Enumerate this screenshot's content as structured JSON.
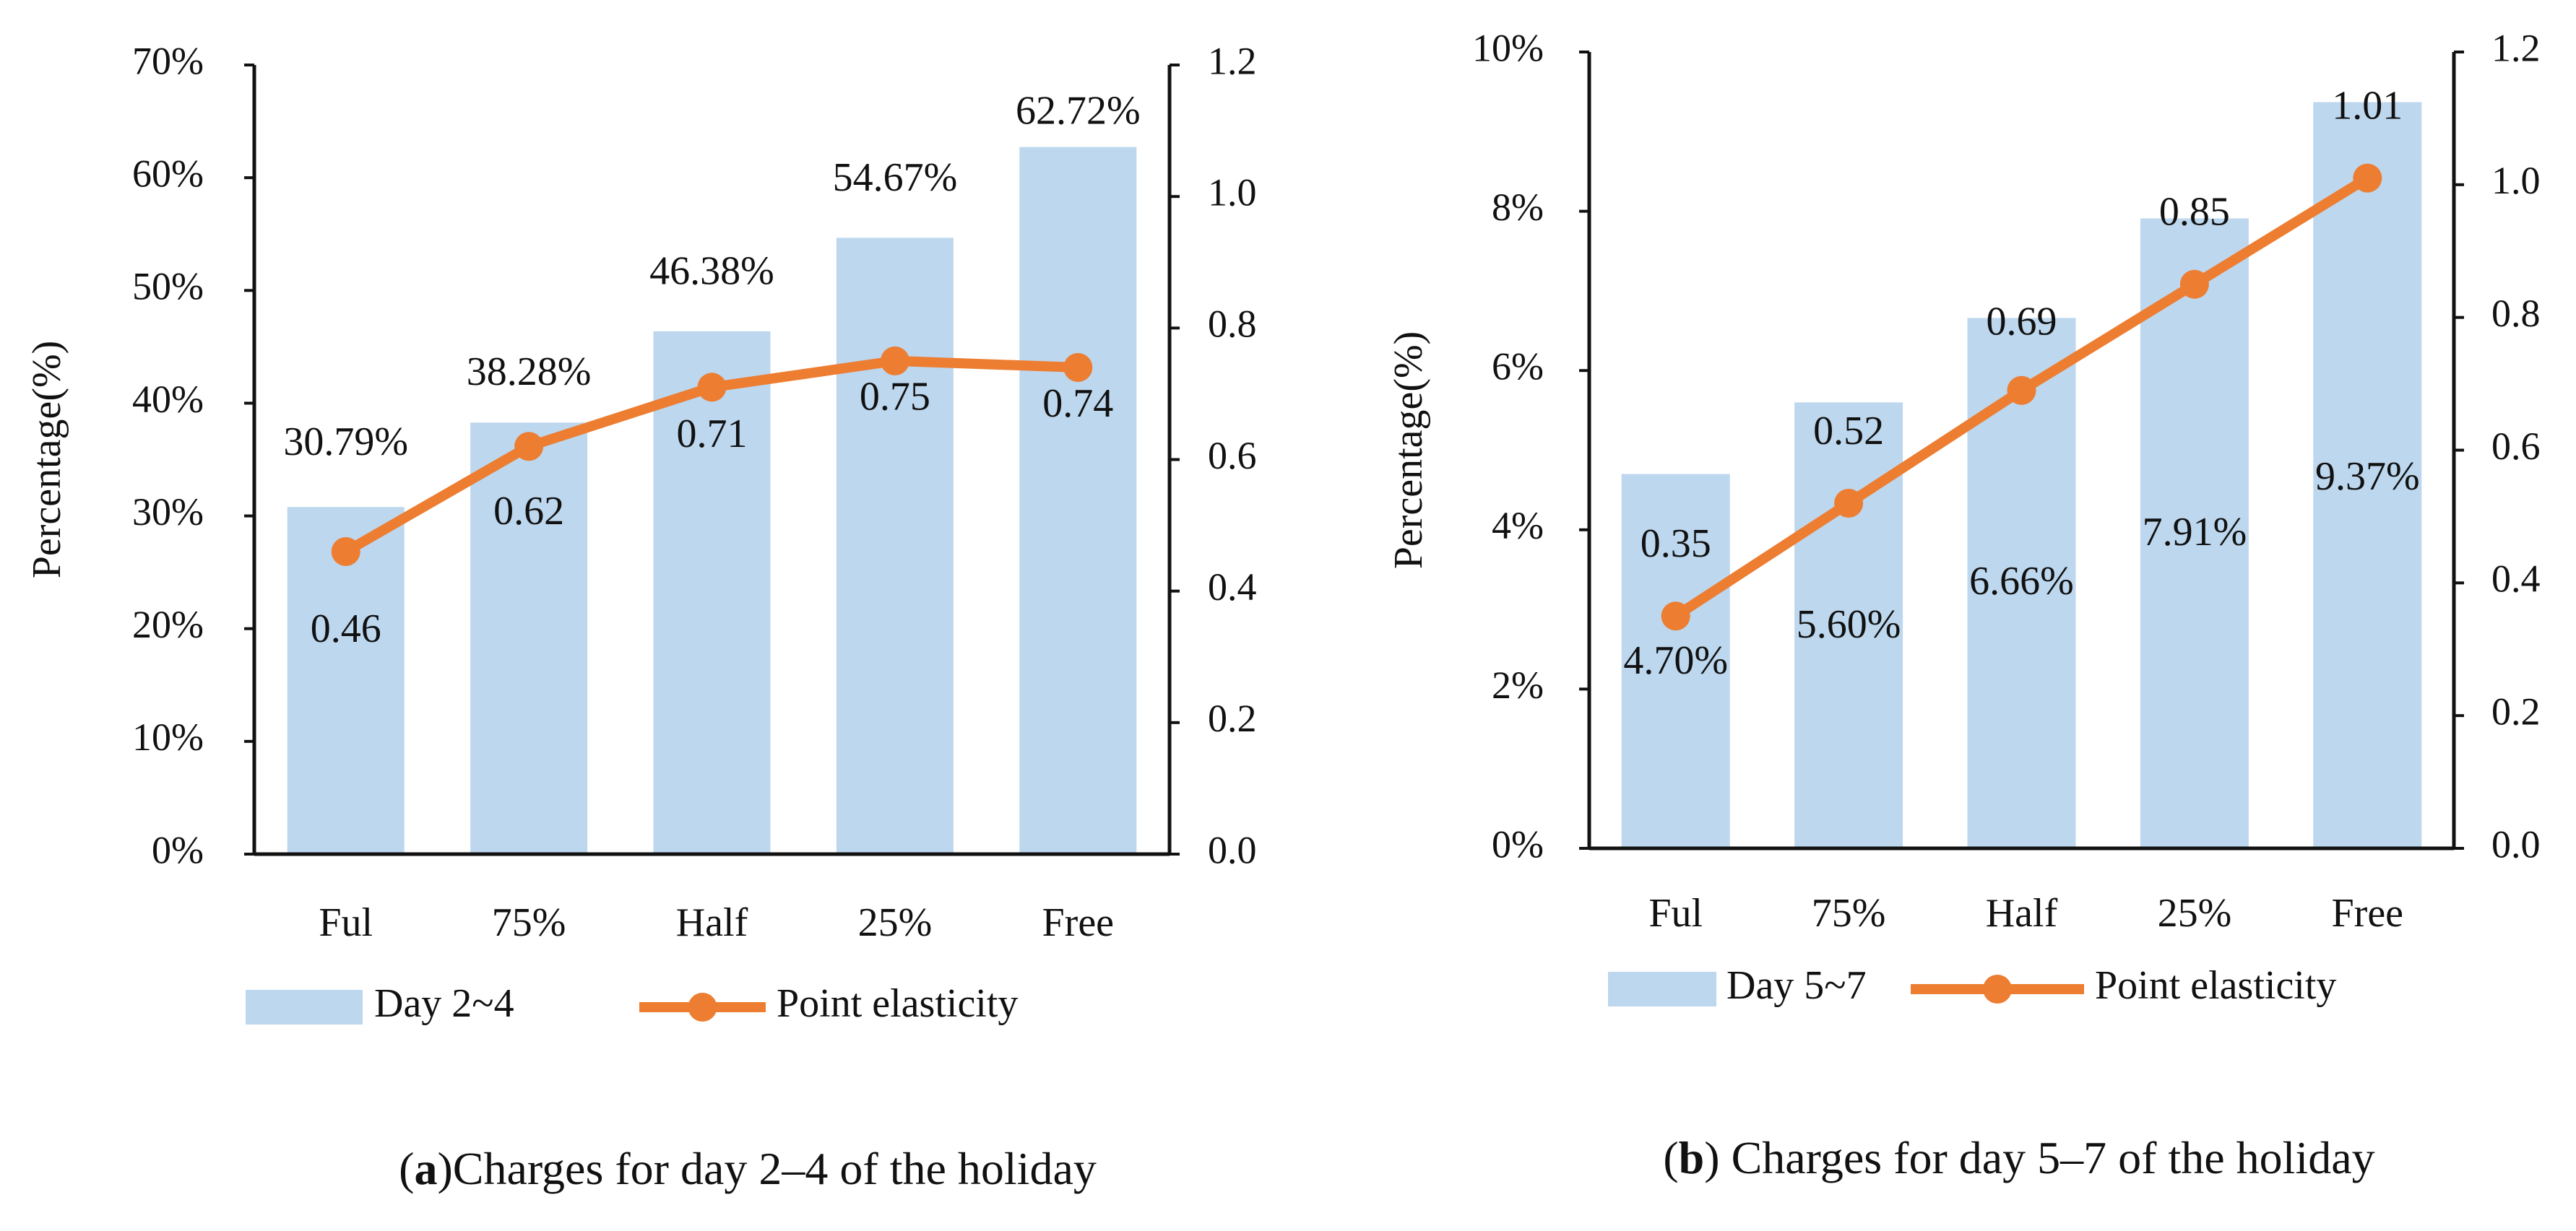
{
  "chart_data": [
    {
      "type": "bar",
      "panel": "a",
      "caption_letter": "a",
      "caption_open": "(",
      "caption_close": ")",
      "caption_text": "Charges for day 2–4 of the holiday",
      "categories": [
        "Ful",
        "75%",
        "Half",
        "25%",
        "Free"
      ],
      "series": [
        {
          "name": "Day 2~4",
          "kind": "bar",
          "axis": "left",
          "color": "#bdd7ee",
          "values": [
            30.79,
            38.28,
            46.38,
            54.67,
            62.72
          ],
          "labels": [
            "30.79%",
            "38.28%",
            "46.38%",
            "54.67%",
            "62.72%"
          ]
        },
        {
          "name": "Point elasticity",
          "kind": "line",
          "axis": "right",
          "color": "#ed7d31",
          "values": [
            0.46,
            0.62,
            0.71,
            0.75,
            0.74
          ],
          "labels": [
            "0.46",
            "0.62",
            "0.71",
            "0.75",
            "0.74"
          ]
        }
      ],
      "ylabel": "Percentage(%)",
      "ylim": [
        0,
        70
      ],
      "yticks": [
        "0%",
        "10%",
        "20%",
        "30%",
        "40%",
        "50%",
        "60%",
        "70%"
      ],
      "y2lim": [
        0,
        1.2
      ],
      "y2ticks": [
        "0.0",
        "0.2",
        "0.4",
        "0.6",
        "0.8",
        "1.0",
        "1.2"
      ],
      "legend": "bottom"
    },
    {
      "type": "bar",
      "panel": "b",
      "caption_letter": "b",
      "caption_open": "(",
      "caption_close": ")",
      "caption_text": " Charges for day 5–7 of the holiday",
      "categories": [
        "Ful",
        "75%",
        "Half",
        "25%",
        "Free"
      ],
      "series": [
        {
          "name": "Day 5~7",
          "kind": "bar",
          "axis": "left",
          "color": "#bdd7ee",
          "values": [
            4.7,
            5.6,
            6.66,
            7.91,
            9.37
          ],
          "labels": [
            "4.70%",
            "5.60%",
            "6.66%",
            "7.91%",
            "9.37%"
          ]
        },
        {
          "name": "Point elasticity",
          "kind": "line",
          "axis": "right",
          "color": "#ed7d31",
          "values": [
            0.35,
            0.52,
            0.69,
            0.85,
            1.01
          ],
          "labels": [
            "0.35",
            "0.52",
            "0.69",
            "0.85",
            "1.01"
          ]
        }
      ],
      "ylabel": "Percentage(%)",
      "ylim": [
        0,
        10
      ],
      "yticks": [
        "0%",
        "2%",
        "4%",
        "6%",
        "8%",
        "10%"
      ],
      "y2lim": [
        0,
        1.2
      ],
      "y2ticks": [
        "0.0",
        "0.2",
        "0.4",
        "0.6",
        "0.8",
        "1.0",
        "1.2"
      ],
      "legend": "bottom"
    }
  ]
}
